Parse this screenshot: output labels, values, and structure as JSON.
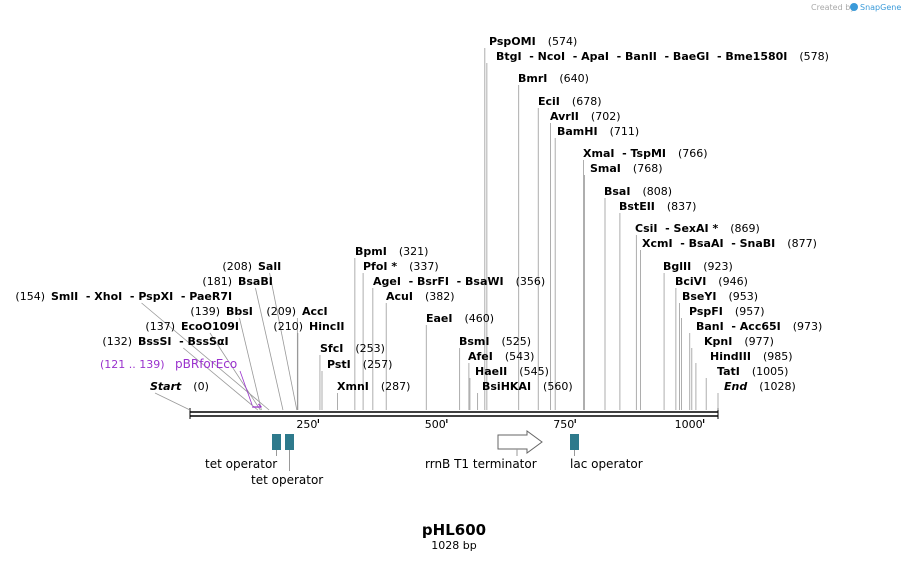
{
  "credit": {
    "prefix": "Created by",
    "brand": "SnapGene"
  },
  "plasmid": {
    "name": "pHL600",
    "length_label": "1028 bp",
    "length": 1028
  },
  "colors": {
    "primer": "#9a32cd",
    "feature": "#2e7a8c",
    "line": "#999999",
    "text": "#000000"
  },
  "ruler": {
    "ticks": [
      250,
      500,
      750,
      1000
    ]
  },
  "primer": {
    "label": "pBRforEco",
    "range": "(121 .. 139)",
    "start": 121,
    "end": 139
  },
  "sites": [
    {
      "pos": 0,
      "label": "Start",
      "pos_label": "(0)",
      "italic": true
    },
    {
      "pos": 132,
      "label": "BssSI  - BssSαI",
      "pos_label": "(132)"
    },
    {
      "pos": 137,
      "label": "EcoO109I",
      "pos_label": "(137)"
    },
    {
      "pos": 139,
      "label": "BbsI",
      "pos_label": "(139)"
    },
    {
      "pos": 154,
      "label": "SmlI  - XhoI  - PspXI  - PaeR7I",
      "pos_label": "(154)"
    },
    {
      "pos": 181,
      "label": "BsaBI",
      "pos_label": "(181)"
    },
    {
      "pos": 208,
      "label": "SalI",
      "pos_label": "(208)"
    },
    {
      "pos": 209,
      "label": "AccI",
      "pos_label": "(209)"
    },
    {
      "pos": 210,
      "label": "HincII",
      "pos_label": "(210)"
    },
    {
      "pos": 253,
      "label": "SfcI",
      "pos_label": "(253)"
    },
    {
      "pos": 257,
      "label": "PstI",
      "pos_label": "(257)"
    },
    {
      "pos": 287,
      "label": "XmnI",
      "pos_label": "(287)"
    },
    {
      "pos": 321,
      "label": "BpmI",
      "pos_label": "(321)"
    },
    {
      "pos": 337,
      "label": "PfoI *",
      "pos_label": "(337)"
    },
    {
      "pos": 356,
      "label": "AgeI  - BsrFI  - BsaWI",
      "pos_label": "(356)"
    },
    {
      "pos": 382,
      "label": "AcuI",
      "pos_label": "(382)"
    },
    {
      "pos": 460,
      "label": "EaeI",
      "pos_label": "(460)"
    },
    {
      "pos": 525,
      "label": "BsmI",
      "pos_label": "(525)"
    },
    {
      "pos": 543,
      "label": "AfeI",
      "pos_label": "(543)"
    },
    {
      "pos": 545,
      "label": "HaeII",
      "pos_label": "(545)"
    },
    {
      "pos": 560,
      "label": "BsiHKAI",
      "pos_label": "(560)"
    },
    {
      "pos": 574,
      "label": "PspOMI",
      "pos_label": "(574)"
    },
    {
      "pos": 578,
      "label": "BtgI  - NcoI  - ApaI  - BanII  - BaeGI  - Bme1580I",
      "pos_label": "(578)"
    },
    {
      "pos": 640,
      "label": "BmrI",
      "pos_label": "(640)"
    },
    {
      "pos": 678,
      "label": "EciI",
      "pos_label": "(678)"
    },
    {
      "pos": 702,
      "label": "AvrII",
      "pos_label": "(702)"
    },
    {
      "pos": 711,
      "label": "BamHI",
      "pos_label": "(711)"
    },
    {
      "pos": 766,
      "label": "XmaI  - TspMI",
      "pos_label": "(766)"
    },
    {
      "pos": 768,
      "label": "SmaI",
      "pos_label": "(768)"
    },
    {
      "pos": 808,
      "label": "BsaI",
      "pos_label": "(808)"
    },
    {
      "pos": 837,
      "label": "BstEII",
      "pos_label": "(837)"
    },
    {
      "pos": 869,
      "label": "CsiI  - SexAI *",
      "pos_label": "(869)"
    },
    {
      "pos": 877,
      "label": "XcmI  - BsaAI  - SnaBI",
      "pos_label": "(877)"
    },
    {
      "pos": 923,
      "label": "BglII",
      "pos_label": "(923)"
    },
    {
      "pos": 946,
      "label": "BciVI",
      "pos_label": "(946)"
    },
    {
      "pos": 953,
      "label": "BseYI",
      "pos_label": "(953)"
    },
    {
      "pos": 957,
      "label": "PspFI",
      "pos_label": "(957)"
    },
    {
      "pos": 973,
      "label": "BanI  - Acc65I",
      "pos_label": "(973)"
    },
    {
      "pos": 977,
      "label": "KpnI",
      "pos_label": "(977)"
    },
    {
      "pos": 985,
      "label": "HindIII",
      "pos_label": "(985)"
    },
    {
      "pos": 1005,
      "label": "TatI",
      "pos_label": "(1005)"
    },
    {
      "pos": 1028,
      "label": "End",
      "pos_label": "(1028)",
      "italic": true
    }
  ],
  "features": [
    {
      "label": "tet operator",
      "type": "box"
    },
    {
      "label": "tet operator",
      "type": "box"
    },
    {
      "label": "rrnB T1 terminator",
      "type": "arrow"
    },
    {
      "label": "lac operator",
      "type": "box"
    }
  ]
}
